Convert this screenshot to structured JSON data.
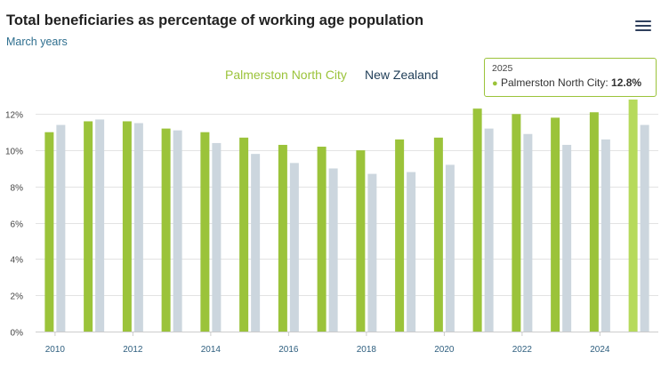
{
  "header": {
    "title": "Total beneficiaries as percentage of working age population",
    "subtitle": "March years",
    "menu_icon": "hamburger-menu-icon"
  },
  "colors": {
    "palmerston": "#9bc33a",
    "palmerston_highlight": "#b6da5c",
    "new_zealand": "#ccd6de",
    "grid": "#e3e3e3",
    "axis_text": "#444444",
    "x_tick_text": "#2f5f7f"
  },
  "tooltip": {
    "year": "2025",
    "series": "Palmerston North City:",
    "value": "12.8%"
  },
  "chart_data": {
    "type": "bar",
    "title": "Total beneficiaries as percentage of working age population",
    "subtitle": "March years",
    "categories": [
      2010,
      2011,
      2012,
      2013,
      2014,
      2015,
      2016,
      2017,
      2018,
      2019,
      2020,
      2021,
      2022,
      2023,
      2024,
      2025
    ],
    "x_tick_labels": [
      "2010",
      "2012",
      "2014",
      "2016",
      "2018",
      "2020",
      "2022",
      "2024"
    ],
    "y_tick_labels": [
      "0%",
      "2%",
      "4%",
      "6%",
      "8%",
      "10%",
      "12%"
    ],
    "ylim": [
      0,
      12.8
    ],
    "y_ticks": [
      0,
      2,
      4,
      6,
      8,
      10,
      12
    ],
    "grid": true,
    "legend_position": "top-center",
    "highlight_category": 2025,
    "series": [
      {
        "name": "Palmerston North City",
        "color": "#9bc33a",
        "values": [
          11.0,
          11.6,
          11.6,
          11.2,
          11.0,
          10.7,
          10.3,
          10.2,
          10.0,
          10.6,
          10.7,
          12.3,
          12.0,
          11.8,
          12.1,
          12.8
        ]
      },
      {
        "name": "New Zealand",
        "color": "#ccd6de",
        "values": [
          11.4,
          11.7,
          11.5,
          11.1,
          10.4,
          9.8,
          9.3,
          9.0,
          8.7,
          8.8,
          9.2,
          11.2,
          10.9,
          10.3,
          10.6,
          11.4
        ]
      }
    ]
  }
}
